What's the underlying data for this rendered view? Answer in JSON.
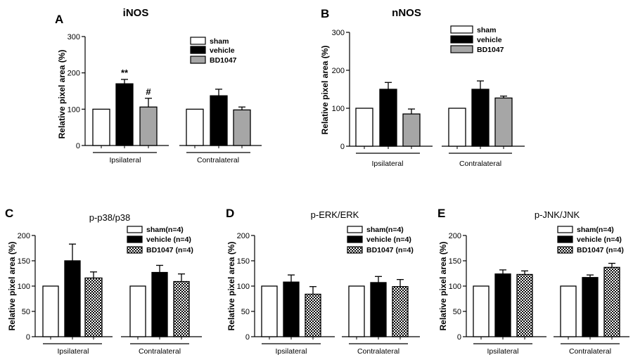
{
  "chart_data": [
    {
      "type": "bar",
      "panel": "A",
      "title": "iNOS",
      "ylabel": "Relative pixel area (%)",
      "ylim": [
        0,
        300
      ],
      "yticks": [
        0,
        100,
        200,
        300
      ],
      "groups": [
        "Ipsilateral",
        "Contralateral"
      ],
      "series": [
        {
          "name": "sham",
          "values": [
            100,
            100
          ],
          "errors": [
            0,
            0
          ]
        },
        {
          "name": "vehicle",
          "values": [
            170,
            137
          ],
          "errors": [
            12,
            18
          ]
        },
        {
          "name": "BD1047",
          "values": [
            106,
            98
          ],
          "errors": [
            24,
            8
          ]
        }
      ],
      "annotations": [
        {
          "group": 0,
          "series": 1,
          "text": "**"
        },
        {
          "group": 0,
          "series": 2,
          "text": "#"
        }
      ]
    },
    {
      "type": "bar",
      "panel": "B",
      "title": "nNOS",
      "ylabel": "Relative pixel area (%)",
      "ylim": [
        0,
        300
      ],
      "yticks": [
        0,
        100,
        200,
        300
      ],
      "groups": [
        "Ipsilateral",
        "Contralateral"
      ],
      "series": [
        {
          "name": "sham",
          "values": [
            100,
            100
          ],
          "errors": [
            0,
            0
          ]
        },
        {
          "name": "vehicle",
          "values": [
            150,
            150
          ],
          "errors": [
            18,
            22
          ]
        },
        {
          "name": "BD1047",
          "values": [
            85,
            127
          ],
          "errors": [
            13,
            5
          ]
        }
      ],
      "annotations": []
    },
    {
      "type": "bar",
      "panel": "C",
      "title": "p-p38/p38",
      "ylabel": "Relative pixel area (%)",
      "ylim": [
        0,
        200
      ],
      "yticks": [
        0,
        50,
        100,
        150,
        200
      ],
      "groups": [
        "Ipsilateral",
        "Contralateral"
      ],
      "series": [
        {
          "name": "sham(n=4)",
          "values": [
            100,
            100
          ],
          "errors": [
            0,
            0
          ]
        },
        {
          "name": "vehicle (n=4)",
          "values": [
            150,
            127
          ],
          "errors": [
            33,
            14
          ]
        },
        {
          "name": "BD1047 (n=4)",
          "values": [
            116,
            109
          ],
          "errors": [
            12,
            15
          ]
        }
      ],
      "annotations": []
    },
    {
      "type": "bar",
      "panel": "D",
      "title": "p-ERK/ERK",
      "ylabel": "Relative pixel area (%)",
      "ylim": [
        0,
        200
      ],
      "yticks": [
        0,
        50,
        100,
        150,
        200
      ],
      "groups": [
        "Ipsilateral",
        "Contralateral"
      ],
      "series": [
        {
          "name": "sham(n=4)",
          "values": [
            100,
            100
          ],
          "errors": [
            0,
            0
          ]
        },
        {
          "name": "vehicle (n=4)",
          "values": [
            108,
            107
          ],
          "errors": [
            14,
            12
          ]
        },
        {
          "name": "BD1047 (n=4)",
          "values": [
            84,
            99
          ],
          "errors": [
            15,
            14
          ]
        }
      ],
      "annotations": []
    },
    {
      "type": "bar",
      "panel": "E",
      "title": "p-JNK/JNK",
      "ylabel": "Relative pixel area (%)",
      "ylim": [
        0,
        200
      ],
      "yticks": [
        0,
        50,
        100,
        150,
        200
      ],
      "groups": [
        "Ipsilateral",
        "Contralateral"
      ],
      "series": [
        {
          "name": "sham(n=4)",
          "values": [
            100,
            100
          ],
          "errors": [
            0,
            0
          ]
        },
        {
          "name": "vehicle (n=4)",
          "values": [
            124,
            117
          ],
          "errors": [
            8,
            5
          ]
        },
        {
          "name": "BD1047 (n=4)",
          "values": [
            123,
            137
          ],
          "errors": [
            7,
            8
          ]
        }
      ],
      "annotations": []
    }
  ],
  "colors": {
    "sham": "#ffffff",
    "vehicle": "#000000",
    "BD1047_gray": "#a6a6a6",
    "BD1047_checker": "checker"
  }
}
